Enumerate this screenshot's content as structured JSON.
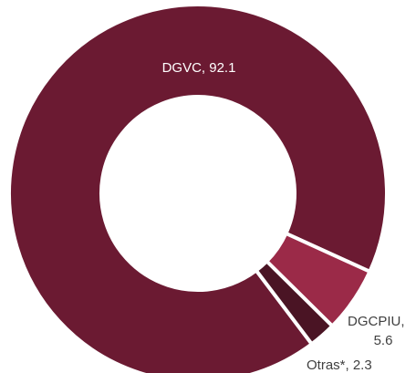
{
  "chart_data": {
    "type": "pie",
    "style": "donut",
    "slices": [
      {
        "name": "DGVC",
        "value": 92.1,
        "label": "DGVC, 92.1",
        "color": "#6b1a32",
        "label_color": "#ffffff"
      },
      {
        "name": "DGCPIU",
        "value": 5.6,
        "label_lines": [
          "DGCPIU,",
          "5.6"
        ],
        "color": "#9b2a48",
        "label_color": "#404040"
      },
      {
        "name": "Otras*",
        "value": 2.3,
        "label": "Otras*, 2.3",
        "color": "#4a1424",
        "label_color": "#404040"
      }
    ],
    "slice_separator_color": "#ffffff"
  }
}
